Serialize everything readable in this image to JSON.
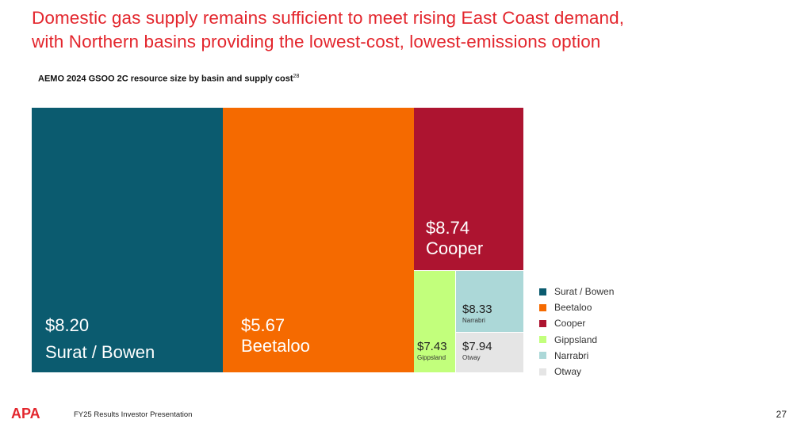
{
  "slide": {
    "title_line1": "Domestic gas supply remains sufficient to meet rising East Coast demand,",
    "title_line2": "with Northern basins providing the lowest-cost, lowest-emissions option",
    "footer": "FY25 Results Investor Presentation",
    "logo": "APA",
    "page_number": "27"
  },
  "chart_data": {
    "type": "treemap",
    "title": "AEMO 2024 GSOO 2C resource size by basin and supply cost",
    "title_footnote": "28",
    "legend_position": "right",
    "items": [
      {
        "name": "Surat / Bowen",
        "cost": "$8.20",
        "color": "#0b5b6f"
      },
      {
        "name": "Beetaloo",
        "cost": "$5.67",
        "color": "#f56a00"
      },
      {
        "name": "Cooper",
        "cost": "$8.74",
        "color": "#ad1430"
      },
      {
        "name": "Gippsland",
        "cost": "$7.43",
        "color": "#c2ff7c"
      },
      {
        "name": "Narrabri",
        "cost": "$8.33",
        "color": "#acd8d8"
      },
      {
        "name": "Otway",
        "cost": "$7.94",
        "color": "#e5e5e5"
      }
    ]
  }
}
